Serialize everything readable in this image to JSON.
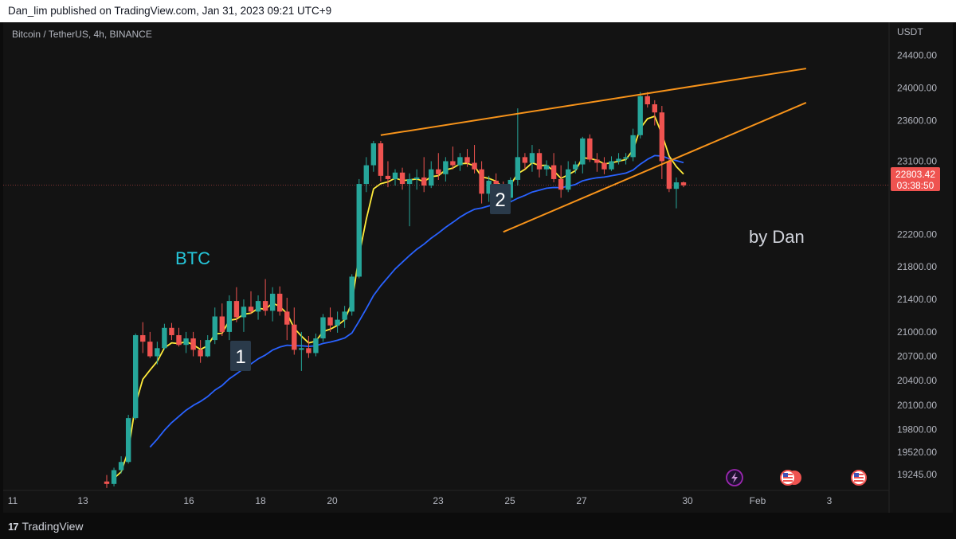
{
  "header": {
    "attribution": "Dan_lim published on TradingView.com, Jan 31, 2023 09:21 UTC+9"
  },
  "chart_data": {
    "type": "candlestick",
    "symbol_title": "Bitcoin / TetherUS, 4h, BINANCE",
    "currency": "USDT",
    "ylim": [
      19050,
      24750
    ],
    "y_ticks": [
      "24400.00",
      "24000.00",
      "23600.00",
      "23100.00",
      "22200.00",
      "21800.00",
      "21400.00",
      "21000.00",
      "20700.00",
      "20400.00",
      "20100.00",
      "19800.00",
      "19520.00",
      "19245.00"
    ],
    "x_ticks": [
      "11",
      "13",
      "16",
      "18",
      "20",
      "23",
      "25",
      "27",
      "30",
      "Feb",
      "3"
    ],
    "last_price": "22803.42",
    "countdown": "03:38:50",
    "annotations": {
      "ticker": "BTC",
      "wave_1": "1",
      "wave_2": "2",
      "signature": "by Dan"
    },
    "colors": {
      "up": "#26a69a",
      "down": "#ef5350",
      "ema_fast": "#ffeb3b",
      "ema_slow": "#2962ff",
      "trendline": "#f7931a",
      "text": "#b2b5be",
      "ticker": "#26c6da"
    },
    "candles": [
      [
        19160,
        19240,
        19080,
        19130
      ],
      [
        19130,
        19330,
        19100,
        19300
      ],
      [
        19300,
        19470,
        19260,
        19400
      ],
      [
        19400,
        19980,
        19380,
        19940
      ],
      [
        19940,
        20980,
        19920,
        20960
      ],
      [
        20960,
        21120,
        20740,
        20880
      ],
      [
        20880,
        21000,
        20680,
        20700
      ],
      [
        20700,
        20880,
        20600,
        20800
      ],
      [
        20800,
        21100,
        20780,
        21050
      ],
      [
        21050,
        21110,
        20900,
        20960
      ],
      [
        20960,
        21050,
        20820,
        20840
      ],
      [
        20840,
        21000,
        20740,
        20920
      ],
      [
        20920,
        21000,
        20700,
        20780
      ],
      [
        20780,
        20900,
        20620,
        20700
      ],
      [
        20700,
        20960,
        20690,
        20900
      ],
      [
        20900,
        21300,
        20850,
        21190
      ],
      [
        21190,
        21350,
        20950,
        21000
      ],
      [
        21000,
        21450,
        20900,
        21380
      ],
      [
        21380,
        21550,
        21120,
        21180
      ],
      [
        21180,
        21400,
        21000,
        21310
      ],
      [
        21310,
        21500,
        21220,
        21250
      ],
      [
        21250,
        21450,
        21150,
        21380
      ],
      [
        21380,
        21650,
        21200,
        21260
      ],
      [
        21260,
        21550,
        21130,
        21470
      ],
      [
        21470,
        21560,
        21200,
        21250
      ],
      [
        21250,
        21420,
        20900,
        21090
      ],
      [
        21090,
        21300,
        20720,
        20780
      ],
      [
        20780,
        21000,
        20520,
        20800
      ],
      [
        20800,
        20950,
        20680,
        20740
      ],
      [
        20740,
        20980,
        20700,
        20920
      ],
      [
        20920,
        21220,
        20880,
        21180
      ],
      [
        21180,
        21300,
        21000,
        21080
      ],
      [
        21080,
        21250,
        20990,
        21150
      ],
      [
        21150,
        21320,
        21050,
        21250
      ],
      [
        21250,
        21710,
        21200,
        21680
      ],
      [
        21680,
        22880,
        21660,
        22820
      ],
      [
        22820,
        23150,
        22720,
        23050
      ],
      [
        23050,
        23350,
        22970,
        23320
      ],
      [
        23320,
        23350,
        22850,
        22920
      ],
      [
        22920,
        23100,
        22780,
        22880
      ],
      [
        22880,
        23000,
        22800,
        22960
      ],
      [
        22960,
        23020,
        22750,
        22820
      ],
      [
        22820,
        22950,
        22300,
        22880
      ],
      [
        22880,
        23000,
        22750,
        22900
      ],
      [
        22900,
        23150,
        22720,
        22800
      ],
      [
        22800,
        23100,
        22770,
        23000
      ],
      [
        23000,
        23200,
        22870,
        22940
      ],
      [
        22940,
        23150,
        22850,
        23100
      ],
      [
        23100,
        23280,
        23000,
        23050
      ],
      [
        23050,
        23200,
        22980,
        23150
      ],
      [
        23150,
        23250,
        23030,
        23080
      ],
      [
        23080,
        23300,
        22950,
        23000
      ],
      [
        23000,
        23100,
        22580,
        22700
      ],
      [
        22700,
        22920,
        22600,
        22860
      ],
      [
        22860,
        22950,
        22680,
        22800
      ],
      [
        22800,
        22850,
        22550,
        22650
      ],
      [
        22650,
        22900,
        22600,
        22870
      ],
      [
        22870,
        23750,
        22800,
        23150
      ],
      [
        23150,
        23200,
        23000,
        23080
      ],
      [
        23080,
        23300,
        22970,
        23200
      ],
      [
        23200,
        23250,
        22900,
        23000
      ],
      [
        23000,
        23110,
        22920,
        23050
      ],
      [
        23050,
        23200,
        22840,
        22880
      ],
      [
        22880,
        23050,
        22650,
        22750
      ],
      [
        22750,
        23100,
        22720,
        23000
      ],
      [
        23000,
        23100,
        22950,
        23060
      ],
      [
        23060,
        23400,
        22950,
        23380
      ],
      [
        23380,
        23430,
        23090,
        23120
      ],
      [
        23120,
        23200,
        22970,
        23080
      ],
      [
        23080,
        23150,
        22940,
        23000
      ],
      [
        23000,
        23160,
        22980,
        23100
      ],
      [
        23100,
        23200,
        23060,
        23130
      ],
      [
        23130,
        23200,
        23060,
        23150
      ],
      [
        23150,
        23500,
        23100,
        23420
      ],
      [
        23420,
        23950,
        23380,
        23900
      ],
      [
        23900,
        23950,
        23760,
        23800
      ],
      [
        23800,
        23850,
        23540,
        23700
      ],
      [
        23700,
        23780,
        22880,
        23100
      ],
      [
        23100,
        23150,
        22720,
        22760
      ],
      [
        22760,
        22900,
        22520,
        22840
      ],
      [
        22840,
        22850,
        22780,
        22803.42
      ]
    ],
    "trendlines": [
      {
        "name": "upper",
        "from": [
          "candle",
          38,
          23420
        ],
        "to": [
          "candle",
          97,
          24240
        ]
      },
      {
        "name": "lower",
        "from": [
          "candle",
          55,
          22230
        ],
        "to": [
          "candle",
          97,
          23820
        ]
      }
    ]
  }
}
